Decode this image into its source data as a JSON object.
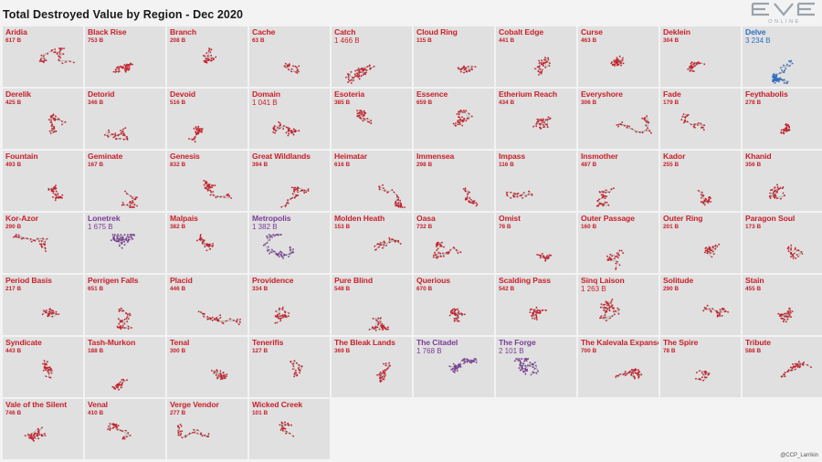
{
  "header": {
    "title": "Total Destroyed Value by Region - Dec 2020"
  },
  "logo": {
    "text": "EVE",
    "subtext": "ONLINE"
  },
  "credit": "@CCP_Larrikin",
  "colors": {
    "red": "#c8202a",
    "purple": "#7a3d96",
    "blue": "#2f6fc2",
    "cell_bg": "#e0e0e0",
    "page_bg": "#f3f3f3"
  },
  "chart_data": {
    "type": "small-multiples",
    "title": "Total Destroyed Value by Region - Dec 2020",
    "unit": "B",
    "regions": [
      {
        "name": "Aridia",
        "value": "617 B",
        "color": "red"
      },
      {
        "name": "Black Rise",
        "value": "753 B",
        "color": "red"
      },
      {
        "name": "Branch",
        "value": "208 B",
        "color": "red"
      },
      {
        "name": "Cache",
        "value": "63 B",
        "color": "red"
      },
      {
        "name": "Catch",
        "value": "1 466 B",
        "color": "red"
      },
      {
        "name": "Cloud Ring",
        "value": "115 B",
        "color": "red"
      },
      {
        "name": "Cobalt Edge",
        "value": "441 B",
        "color": "red"
      },
      {
        "name": "Curse",
        "value": "463 B",
        "color": "red"
      },
      {
        "name": "Deklein",
        "value": "304 B",
        "color": "red"
      },
      {
        "name": "Delve",
        "value": "3 234 B",
        "color": "blue"
      },
      {
        "name": "Derelik",
        "value": "425 B",
        "color": "red"
      },
      {
        "name": "Detorid",
        "value": "346 B",
        "color": "red"
      },
      {
        "name": "Devoid",
        "value": "516 B",
        "color": "red"
      },
      {
        "name": "Domain",
        "value": "1 041 B",
        "color": "red"
      },
      {
        "name": "Esoteria",
        "value": "385 B",
        "color": "red"
      },
      {
        "name": "Essence",
        "value": "659 B",
        "color": "red"
      },
      {
        "name": "Etherium Reach",
        "value": "434 B",
        "color": "red"
      },
      {
        "name": "Everyshore",
        "value": "306 B",
        "color": "red"
      },
      {
        "name": "Fade",
        "value": "179 B",
        "color": "red"
      },
      {
        "name": "Feythabolis",
        "value": "278 B",
        "color": "red"
      },
      {
        "name": "Fountain",
        "value": "493 B",
        "color": "red"
      },
      {
        "name": "Geminate",
        "value": "167 B",
        "color": "red"
      },
      {
        "name": "Genesis",
        "value": "832 B",
        "color": "red"
      },
      {
        "name": "Great Wildlands",
        "value": "394 B",
        "color": "red"
      },
      {
        "name": "Heimatar",
        "value": "616 B",
        "color": "red"
      },
      {
        "name": "Immensea",
        "value": "298 B",
        "color": "red"
      },
      {
        "name": "Impass",
        "value": "116 B",
        "color": "red"
      },
      {
        "name": "Insmother",
        "value": "487 B",
        "color": "red"
      },
      {
        "name": "Kador",
        "value": "255 B",
        "color": "red"
      },
      {
        "name": "Khanid",
        "value": "356 B",
        "color": "red"
      },
      {
        "name": "Kor-Azor",
        "value": "290 B",
        "color": "red"
      },
      {
        "name": "Lonetrek",
        "value": "1 675 B",
        "color": "purple"
      },
      {
        "name": "Malpais",
        "value": "382 B",
        "color": "red"
      },
      {
        "name": "Metropolis",
        "value": "1 382 B",
        "color": "purple"
      },
      {
        "name": "Molden Heath",
        "value": "153 B",
        "color": "red"
      },
      {
        "name": "Oasa",
        "value": "732 B",
        "color": "red"
      },
      {
        "name": "Omist",
        "value": "78 B",
        "color": "red"
      },
      {
        "name": "Outer Passage",
        "value": "160 B",
        "color": "red"
      },
      {
        "name": "Outer Ring",
        "value": "201 B",
        "color": "red"
      },
      {
        "name": "Paragon Soul",
        "value": "173 B",
        "color": "red"
      },
      {
        "name": "Period Basis",
        "value": "217 B",
        "color": "red"
      },
      {
        "name": "Perrigen Falls",
        "value": "651 B",
        "color": "red"
      },
      {
        "name": "Placid",
        "value": "446 B",
        "color": "red"
      },
      {
        "name": "Providence",
        "value": "334 B",
        "color": "red"
      },
      {
        "name": "Pure Blind",
        "value": "548 B",
        "color": "red"
      },
      {
        "name": "Querious",
        "value": "670 B",
        "color": "red"
      },
      {
        "name": "Scalding Pass",
        "value": "542 B",
        "color": "red"
      },
      {
        "name": "Sinq Laison",
        "value": "1 263 B",
        "color": "red"
      },
      {
        "name": "Solitude",
        "value": "290 B",
        "color": "red"
      },
      {
        "name": "Stain",
        "value": "455 B",
        "color": "red"
      },
      {
        "name": "Syndicate",
        "value": "443 B",
        "color": "red"
      },
      {
        "name": "Tash-Murkon",
        "value": "188 B",
        "color": "red"
      },
      {
        "name": "Tenal",
        "value": "300 B",
        "color": "red"
      },
      {
        "name": "Tenerifis",
        "value": "127 B",
        "color": "red"
      },
      {
        "name": "The Bleak Lands",
        "value": "369 B",
        "color": "red"
      },
      {
        "name": "The Citadel",
        "value": "1 768 B",
        "color": "purple"
      },
      {
        "name": "The Forge",
        "value": "2 101 B",
        "color": "purple"
      },
      {
        "name": "The Kalevala Expanse",
        "value": "700 B",
        "color": "red"
      },
      {
        "name": "The Spire",
        "value": "78 B",
        "color": "red"
      },
      {
        "name": "Tribute",
        "value": "588 B",
        "color": "red"
      },
      {
        "name": "Vale of the Silent",
        "value": "746 B",
        "color": "red"
      },
      {
        "name": "Venal",
        "value": "410 B",
        "color": "red"
      },
      {
        "name": "Verge Vendor",
        "value": "277 B",
        "color": "red"
      },
      {
        "name": "Wicked Creek",
        "value": "101 B",
        "color": "red"
      }
    ]
  }
}
